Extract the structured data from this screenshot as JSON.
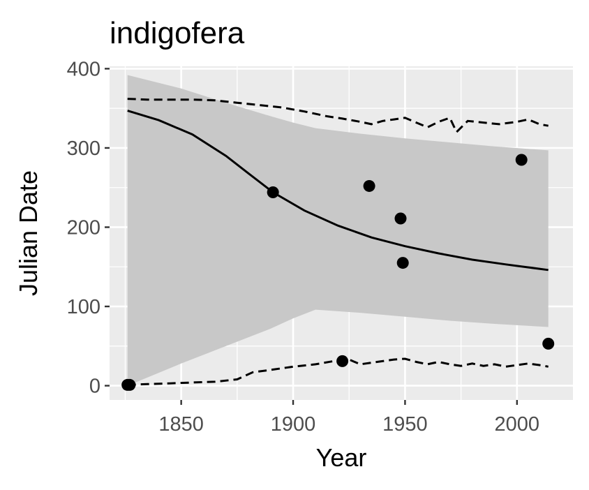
{
  "chart_data": {
    "type": "scatter",
    "title": "indigofera",
    "xlabel": "Year",
    "ylabel": "Julian Date",
    "xlim": [
      1818,
      2025
    ],
    "ylim": [
      -18,
      403
    ],
    "x_ticks": [
      1850,
      1900,
      1950,
      2000
    ],
    "y_ticks": [
      0,
      100,
      200,
      300,
      400
    ],
    "x_tick_labels": [
      "1850",
      "1900",
      "1950",
      "2000"
    ],
    "y_tick_labels": [
      "0",
      "100",
      "200",
      "300",
      "400"
    ],
    "grid": true,
    "legend": "none",
    "colors": {
      "panel": "#ebebeb",
      "grid": "#ffffff",
      "ribbon": "#c8c8c8",
      "points": "#000000",
      "fit": "#000000",
      "tick": "#333333",
      "tick_text": "#4d4d4d"
    },
    "points": [
      {
        "x": 1826,
        "y": 1
      },
      {
        "x": 1827,
        "y": 1
      },
      {
        "x": 1891,
        "y": 244
      },
      {
        "x": 1922,
        "y": 31
      },
      {
        "x": 1934,
        "y": 252
      },
      {
        "x": 1948,
        "y": 211
      },
      {
        "x": 1949,
        "y": 155
      },
      {
        "x": 2002,
        "y": 285
      },
      {
        "x": 2014,
        "y": 53
      }
    ],
    "fit_line": {
      "x": [
        1826,
        1840,
        1855,
        1870,
        1880,
        1891,
        1905,
        1920,
        1935,
        1950,
        1965,
        1980,
        1995,
        2014
      ],
      "y": [
        347,
        335,
        317,
        290,
        268,
        244,
        221,
        202,
        187,
        176,
        167,
        159,
        153,
        146
      ]
    },
    "confidence_band": {
      "x": [
        1826,
        1850,
        1870,
        1890,
        1900,
        1910,
        1930,
        1950,
        1970,
        1990,
        2014
      ],
      "lower": [
        0,
        28,
        50,
        72,
        85,
        96,
        92,
        87,
        82,
        78,
        74
      ],
      "upper": [
        392,
        375,
        357,
        340,
        332,
        325,
        318,
        312,
        307,
        302,
        297
      ]
    },
    "upper_dashed": {
      "x": [
        1826,
        1835,
        1845,
        1855,
        1865,
        1875,
        1885,
        1895,
        1905,
        1915,
        1922,
        1930,
        1935,
        1940,
        1945,
        1950,
        1955,
        1960,
        1965,
        1970,
        1973,
        1978,
        1985,
        1992,
        2000,
        2005,
        2010,
        2014
      ],
      "y": [
        362,
        361,
        361,
        361,
        360,
        357,
        354,
        351,
        346,
        340,
        337,
        333,
        330,
        334,
        336,
        338,
        332,
        326,
        333,
        338,
        320,
        334,
        332,
        330,
        333,
        336,
        330,
        328
      ]
    },
    "lower_dashed": {
      "x": [
        1826,
        1835,
        1845,
        1855,
        1865,
        1875,
        1882,
        1890,
        1900,
        1910,
        1918,
        1925,
        1930,
        1935,
        1940,
        1945,
        1950,
        1955,
        1960,
        1965,
        1970,
        1975,
        1980,
        1985,
        1990,
        1995,
        2000,
        2005,
        2010,
        2014
      ],
      "y": [
        1,
        2,
        3,
        4,
        5,
        8,
        17,
        20,
        24,
        27,
        31,
        33,
        27,
        29,
        31,
        33,
        34,
        30,
        27,
        30,
        27,
        25,
        28,
        25,
        27,
        24,
        26,
        28,
        26,
        24
      ]
    }
  }
}
